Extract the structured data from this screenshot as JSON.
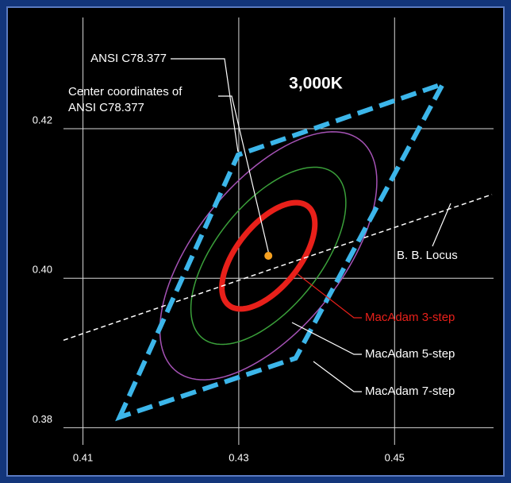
{
  "chart_data": {
    "type": "chromaticity",
    "title": "3,000K",
    "xlim": [
      0.4075,
      0.4625
    ],
    "ylim": [
      0.3777,
      0.4351
    ],
    "xticks": [
      0.41,
      0.43,
      0.45
    ],
    "yticks": [
      0.38,
      {
        "value": 0.4,
        "label": "0.40"
      },
      0.42
    ],
    "grid": true,
    "quadrangle": {
      "name": "ANSI C78.377",
      "color": "#3cb6ea",
      "x": [
        0.4147,
        0.4299,
        0.4562,
        0.4373
      ],
      "y": [
        0.3814,
        0.4165,
        0.426,
        0.3893
      ]
    },
    "center": {
      "name": [
        "Center coordinates of",
        "ANSI C78.377"
      ],
      "color": "#f5a020",
      "x": 0.4338,
      "y": 0.403
    },
    "locus": {
      "name": "B. B. Locus",
      "color": "#ffffff",
      "x": [
        0.4075,
        0.435,
        0.4625
      ],
      "y": [
        0.3917,
        0.4015,
        0.4112
      ]
    },
    "angle": 53.22,
    "ellipses": [
      {
        "name": "MacAdam 3-step",
        "color": "#e8201a",
        "a": 0.00834,
        "b": 0.00408
      },
      {
        "name": "MacAdam 5-step",
        "color": "#3aa03a",
        "a": 0.0139,
        "b": 0.0068
      },
      {
        "name": "MacAdam 7-step",
        "color": "#a552b5",
        "a": 0.01946,
        "b": 0.00952
      }
    ]
  }
}
